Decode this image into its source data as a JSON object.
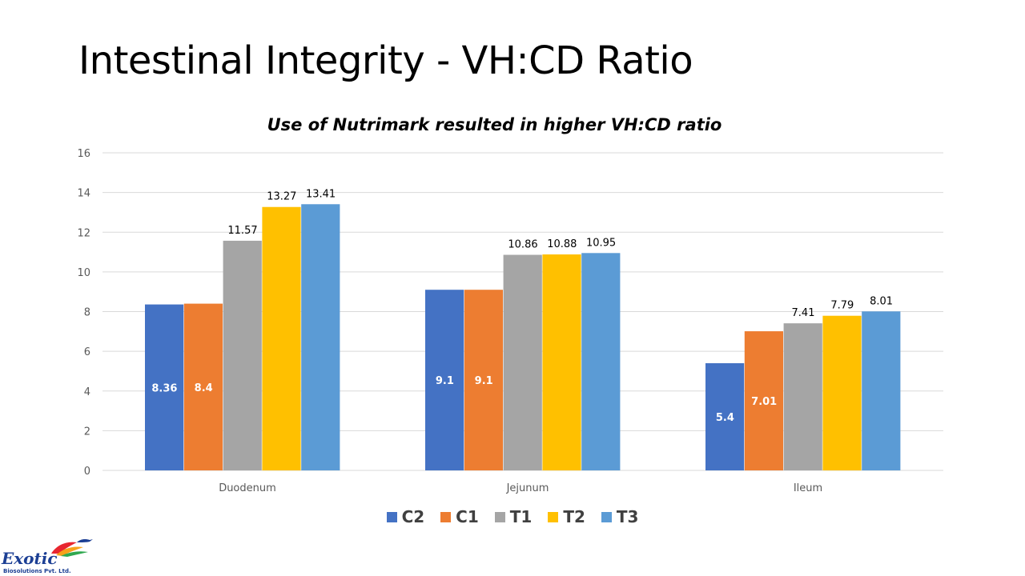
{
  "slide": {
    "title": "Intestinal Integrity - VH:CD Ratio"
  },
  "logo": {
    "name": "Exotic",
    "subtitle": "Biosolutions Pvt. Ltd."
  },
  "colors": {
    "C2": "#4472c4",
    "C1": "#ed7d31",
    "T1": "#a5a5a5",
    "T2": "#ffc000",
    "T3": "#5b9bd5",
    "grid": "#d9d9d9",
    "tick": "#595959",
    "label_dark": "#000000",
    "label_light": "#ffffff"
  },
  "chart_data": {
    "type": "bar",
    "title": "Use of Nutrimark resulted in higher VH:CD ratio",
    "categories": [
      "Duodenum",
      "Jejunum",
      "Ileum"
    ],
    "series": [
      {
        "name": "C2",
        "values": [
          8.36,
          9.1,
          5.4
        ]
      },
      {
        "name": "C1",
        "values": [
          8.4,
          9.1,
          7.01
        ]
      },
      {
        "name": "T1",
        "values": [
          11.57,
          10.86,
          7.41
        ]
      },
      {
        "name": "T2",
        "values": [
          13.27,
          10.88,
          7.79
        ]
      },
      {
        "name": "T3",
        "values": [
          13.41,
          10.95,
          8.01
        ]
      }
    ],
    "data_labels": [
      [
        "8.36",
        "8.4",
        "11.57",
        "13.27",
        "13.41"
      ],
      [
        "9.1",
        "9.1",
        "10.86",
        "10.88",
        "10.95"
      ],
      [
        "5.4",
        "7.01",
        "7.41",
        "7.79",
        "8.01"
      ]
    ],
    "ylim": [
      0,
      16
    ],
    "yticks": [
      0,
      2,
      4,
      6,
      8,
      10,
      12,
      14,
      16
    ],
    "ytick_labels": [
      "0",
      "2",
      "4",
      "6",
      "8",
      "10",
      "12",
      "14",
      "16"
    ],
    "xlabel": "",
    "ylabel": "",
    "grid": true,
    "legend_position": "bottom"
  }
}
